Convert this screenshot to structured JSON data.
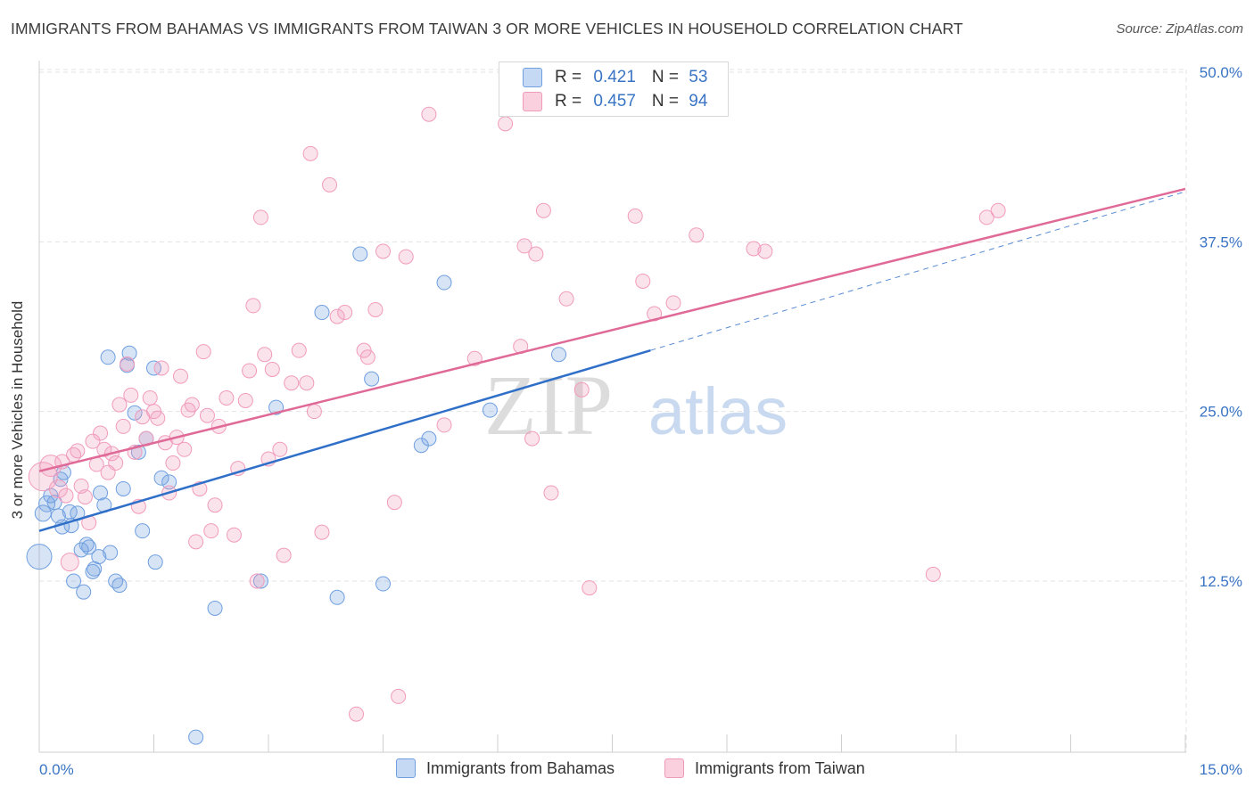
{
  "title": "IMMIGRANTS FROM BAHAMAS VS IMMIGRANTS FROM TAIWAN 3 OR MORE VEHICLES IN HOUSEHOLD CORRELATION CHART",
  "source": "Source: ZipAtlas.com",
  "watermark": {
    "zip": "ZIP",
    "atlas": "atlas"
  },
  "legend_top": [
    {
      "r_label": "R = ",
      "r_value": "0.421",
      "n_label": "N = ",
      "n_value": "53"
    },
    {
      "r_label": "R = ",
      "r_value": "0.457",
      "n_label": "N = ",
      "n_value": "94"
    }
  ],
  "chart_data": {
    "type": "scatter",
    "title": "IMMIGRANTS FROM BAHAMAS VS IMMIGRANTS FROM TAIWAN 3 OR MORE VEHICLES IN HOUSEHOLD CORRELATION CHART",
    "xlabel": "",
    "ylabel": "3 or more Vehicles in Household",
    "xlim": [
      0,
      15
    ],
    "ylim": [
      0,
      52
    ],
    "x_tick_labels": [
      "0.0%",
      "15.0%"
    ],
    "y_ticks": [
      12.5,
      25.0,
      37.5,
      50.0
    ],
    "y_tick_labels": [
      "12.5%",
      "25.0%",
      "37.5%",
      "50.0%"
    ],
    "grid": true,
    "legend_position": "bottom",
    "series": [
      {
        "name": "Immigrants from Bahamas",
        "color": "#6f9fe0",
        "line_color": "#2f6fc8",
        "trend": {
          "x0": 0.0,
          "y0": 16.2,
          "x1": 8.0,
          "y1": 29.5,
          "dashed_to_x": 15.0,
          "dashed_to_y": 41.2
        },
        "points": [
          [
            0.0,
            14.3,
            14
          ],
          [
            0.05,
            17.5,
            9
          ],
          [
            0.1,
            18.2,
            9
          ],
          [
            0.15,
            18.8,
            8
          ],
          [
            0.2,
            18.3,
            8
          ],
          [
            0.25,
            17.3,
            8
          ],
          [
            0.28,
            20.0,
            8
          ],
          [
            0.3,
            16.5,
            8
          ],
          [
            0.32,
            20.5,
            8
          ],
          [
            0.4,
            17.6,
            8
          ],
          [
            0.42,
            16.6,
            8
          ],
          [
            0.45,
            12.5,
            8
          ],
          [
            0.5,
            17.5,
            8
          ],
          [
            0.55,
            14.8,
            8
          ],
          [
            0.58,
            11.7,
            8
          ],
          [
            0.62,
            15.2,
            8
          ],
          [
            0.65,
            15.0,
            8
          ],
          [
            0.7,
            13.2,
            8
          ],
          [
            0.72,
            13.4,
            8
          ],
          [
            0.78,
            14.3,
            8
          ],
          [
            0.8,
            19.0,
            8
          ],
          [
            0.85,
            18.1,
            8
          ],
          [
            0.9,
            29.0,
            8
          ],
          [
            0.93,
            14.6,
            8
          ],
          [
            1.0,
            12.5,
            8
          ],
          [
            1.05,
            12.2,
            8
          ],
          [
            1.1,
            19.3,
            8
          ],
          [
            1.15,
            28.4,
            8
          ],
          [
            1.18,
            29.3,
            8
          ],
          [
            1.25,
            24.9,
            8
          ],
          [
            1.3,
            22.0,
            8
          ],
          [
            1.35,
            16.2,
            8
          ],
          [
            1.4,
            23.0,
            8
          ],
          [
            1.5,
            28.2,
            8
          ],
          [
            1.52,
            13.9,
            8
          ],
          [
            1.6,
            20.1,
            8
          ],
          [
            1.7,
            19.8,
            8
          ],
          [
            2.05,
            1.0,
            8
          ],
          [
            2.3,
            10.5,
            8
          ],
          [
            2.9,
            12.5,
            8
          ],
          [
            3.1,
            25.3,
            8
          ],
          [
            3.7,
            32.3,
            8
          ],
          [
            3.9,
            11.3,
            8
          ],
          [
            4.2,
            36.6,
            8
          ],
          [
            4.35,
            27.4,
            8
          ],
          [
            4.5,
            12.3,
            8
          ],
          [
            5.0,
            22.5,
            8
          ],
          [
            5.1,
            23.0,
            8
          ],
          [
            5.3,
            34.5,
            8
          ],
          [
            5.9,
            25.1,
            8
          ],
          [
            6.8,
            29.2,
            8
          ]
        ]
      },
      {
        "name": "Immigrants from Taiwan",
        "color": "#f19bbb",
        "line_color": "#e06a97",
        "trend": {
          "x0": 0.0,
          "y0": 20.6,
          "x1": 15.0,
          "y1": 41.4
        },
        "points": [
          [
            0.05,
            20.2,
            16
          ],
          [
            0.15,
            21.0,
            12
          ],
          [
            0.25,
            19.3,
            10
          ],
          [
            0.3,
            21.3,
            8
          ],
          [
            0.35,
            18.8,
            8
          ],
          [
            0.4,
            13.9,
            10
          ],
          [
            0.45,
            21.8,
            8
          ],
          [
            0.5,
            22.1,
            8
          ],
          [
            0.55,
            19.5,
            8
          ],
          [
            0.6,
            18.7,
            8
          ],
          [
            0.65,
            16.8,
            8
          ],
          [
            0.7,
            22.8,
            8
          ],
          [
            0.75,
            21.1,
            8
          ],
          [
            0.8,
            23.4,
            8
          ],
          [
            0.85,
            22.2,
            8
          ],
          [
            0.9,
            20.5,
            8
          ],
          [
            0.95,
            21.9,
            8
          ],
          [
            1.0,
            21.2,
            8
          ],
          [
            1.05,
            25.5,
            8
          ],
          [
            1.1,
            23.9,
            8
          ],
          [
            1.15,
            28.5,
            8
          ],
          [
            1.2,
            26.2,
            8
          ],
          [
            1.25,
            22.0,
            8
          ],
          [
            1.3,
            18.0,
            8
          ],
          [
            1.35,
            24.6,
            8
          ],
          [
            1.4,
            23.0,
            8
          ],
          [
            1.45,
            26.0,
            8
          ],
          [
            1.5,
            25.0,
            8
          ],
          [
            1.55,
            24.5,
            8
          ],
          [
            1.6,
            28.2,
            8
          ],
          [
            1.65,
            22.7,
            8
          ],
          [
            1.7,
            19.0,
            8
          ],
          [
            1.75,
            21.2,
            8
          ],
          [
            1.8,
            23.1,
            8
          ],
          [
            1.85,
            27.6,
            8
          ],
          [
            1.9,
            22.2,
            8
          ],
          [
            1.95,
            25.1,
            8
          ],
          [
            2.0,
            25.5,
            8
          ],
          [
            2.05,
            15.4,
            8
          ],
          [
            2.1,
            19.3,
            8
          ],
          [
            2.15,
            29.4,
            8
          ],
          [
            2.2,
            24.7,
            8
          ],
          [
            2.25,
            16.2,
            8
          ],
          [
            2.3,
            18.1,
            8
          ],
          [
            2.35,
            23.9,
            8
          ],
          [
            2.45,
            26.0,
            8
          ],
          [
            2.55,
            15.9,
            8
          ],
          [
            2.6,
            20.8,
            8
          ],
          [
            2.7,
            25.8,
            8
          ],
          [
            2.75,
            28.0,
            8
          ],
          [
            2.8,
            32.8,
            8
          ],
          [
            2.85,
            12.5,
            8
          ],
          [
            2.9,
            39.3,
            8
          ],
          [
            2.95,
            29.2,
            8
          ],
          [
            3.0,
            21.5,
            8
          ],
          [
            3.05,
            28.1,
            8
          ],
          [
            3.15,
            22.2,
            8
          ],
          [
            3.2,
            14.4,
            8
          ],
          [
            3.3,
            27.1,
            8
          ],
          [
            3.4,
            29.5,
            8
          ],
          [
            3.5,
            27.1,
            8
          ],
          [
            3.55,
            44.0,
            8
          ],
          [
            3.6,
            25.0,
            8
          ],
          [
            3.7,
            16.1,
            8
          ],
          [
            3.8,
            41.7,
            8
          ],
          [
            3.9,
            32.0,
            8
          ],
          [
            4.0,
            32.3,
            8
          ],
          [
            4.15,
            2.7,
            8
          ],
          [
            4.25,
            29.5,
            8
          ],
          [
            4.3,
            29.0,
            8
          ],
          [
            4.4,
            32.5,
            8
          ],
          [
            4.5,
            36.8,
            8
          ],
          [
            4.65,
            18.3,
            8
          ],
          [
            4.7,
            4.0,
            8
          ],
          [
            4.8,
            36.4,
            8
          ],
          [
            5.1,
            46.9,
            8
          ],
          [
            5.3,
            24.0,
            8
          ],
          [
            5.7,
            28.9,
            8
          ],
          [
            6.1,
            46.2,
            8
          ],
          [
            6.3,
            29.8,
            8
          ],
          [
            6.35,
            37.2,
            8
          ],
          [
            6.45,
            23.0,
            8
          ],
          [
            6.5,
            36.6,
            8
          ],
          [
            6.6,
            39.8,
            8
          ],
          [
            6.7,
            19.0,
            8
          ],
          [
            6.9,
            33.3,
            8
          ],
          [
            7.1,
            26.6,
            8
          ],
          [
            7.2,
            12.0,
            8
          ],
          [
            7.8,
            39.4,
            8
          ],
          [
            7.9,
            34.6,
            8
          ],
          [
            8.05,
            32.2,
            8
          ],
          [
            8.3,
            33.0,
            8
          ],
          [
            8.6,
            38.0,
            8
          ],
          [
            9.35,
            37.0,
            8
          ],
          [
            9.5,
            36.8,
            8
          ],
          [
            11.7,
            13.0,
            8
          ],
          [
            12.4,
            39.3,
            8
          ],
          [
            12.55,
            39.8,
            8
          ]
        ]
      }
    ]
  }
}
